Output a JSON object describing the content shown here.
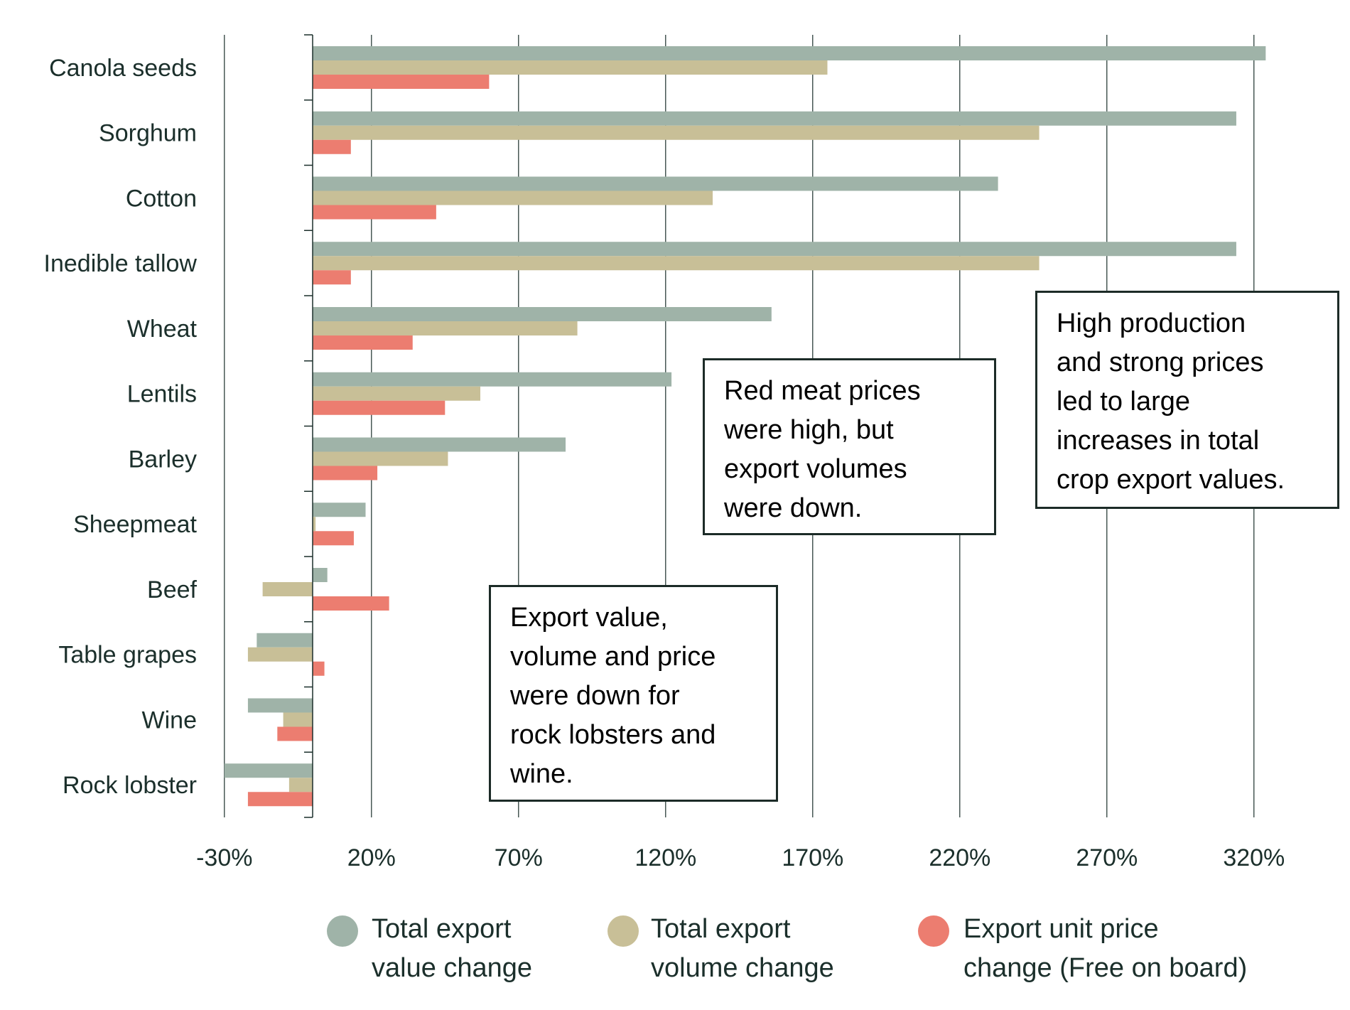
{
  "chart_data": {
    "type": "bar",
    "orientation": "horizontal",
    "title": "",
    "xlabel": "",
    "ylabel": "",
    "xlim": [
      -30,
      340
    ],
    "x_ticks": [
      -30,
      20,
      70,
      120,
      170,
      220,
      270,
      320
    ],
    "x_tick_labels": [
      "-30%",
      "20%",
      "70%",
      "120%",
      "170%",
      "220%",
      "270%",
      "320%"
    ],
    "grid": "vertical",
    "categories": [
      "Canola seeds",
      "Sorghum",
      "Cotton",
      "Inedible tallow",
      "Wheat",
      "Lentils",
      "Barley",
      "Sheepmeat",
      "Beef",
      "Table grapes",
      "Wine",
      "Rock lobster"
    ],
    "series": [
      {
        "name": "Total export value change",
        "color": "#9fb3a8",
        "values": [
          324,
          314,
          233,
          314,
          156,
          122,
          86,
          18,
          5,
          -19,
          -22,
          -30
        ]
      },
      {
        "name": "Total export volume change",
        "color": "#c8bf97",
        "values": [
          175,
          247,
          136,
          247,
          90,
          57,
          46,
          1,
          -17,
          -22,
          -10,
          -8
        ]
      },
      {
        "name": "Export unit price change (Free on board)",
        "color": "#ec7d70",
        "values": [
          60,
          13,
          42,
          13,
          34,
          45,
          22,
          14,
          26,
          4,
          -12,
          -22
        ]
      }
    ],
    "legend_position": "bottom",
    "annotations": [
      {
        "id": "red-meat",
        "lines": [
          "Red meat prices",
          "were high, but",
          "export volumes",
          "were down."
        ]
      },
      {
        "id": "crop",
        "lines": [
          "High production",
          "and strong prices",
          "led to large",
          "increases in total",
          "crop export values."
        ]
      },
      {
        "id": "lobster",
        "lines": [
          "Export value,",
          "volume and price",
          "were down for",
          "rock lobsters and",
          "wine."
        ]
      }
    ]
  },
  "legend": [
    {
      "lines": [
        "Total export",
        "value change"
      ],
      "color": "#9fb3a8"
    },
    {
      "lines": [
        "Total export",
        "volume change"
      ],
      "color": "#c8bf97"
    },
    {
      "lines": [
        "Export unit price",
        "change (Free on board)"
      ],
      "color": "#ec7d70"
    }
  ]
}
